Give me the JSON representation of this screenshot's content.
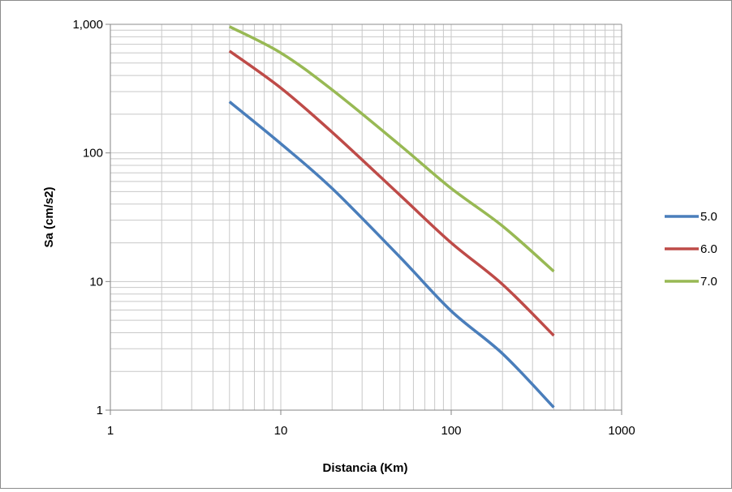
{
  "chart_data": {
    "type": "line",
    "title": "",
    "xlabel": "Distancia (Km)",
    "ylabel": "Sa (cm/s2)",
    "x_scale": "log",
    "y_scale": "log",
    "xlim": [
      1,
      1000
    ],
    "ylim": [
      1,
      1000
    ],
    "x_ticks": [
      1,
      10,
      100,
      1000
    ],
    "x_tick_labels": [
      "1",
      "10",
      "100",
      "1000"
    ],
    "y_ticks": [
      1,
      10,
      100,
      1000
    ],
    "y_tick_labels": [
      "1",
      "10",
      "100",
      "1,000"
    ],
    "grid": "major and minor, both axes",
    "legend_position": "right",
    "series": [
      {
        "name": "5.0",
        "color": "#4a7ebb",
        "points": [
          [
            5,
            250
          ],
          [
            10,
            118
          ],
          [
            20,
            53
          ],
          [
            50,
            15.5
          ],
          [
            100,
            5.9
          ],
          [
            200,
            2.75
          ],
          [
            400,
            1.05
          ]
        ]
      },
      {
        "name": "6.0",
        "color": "#be4b48",
        "points": [
          [
            5,
            620
          ],
          [
            10,
            320
          ],
          [
            20,
            145
          ],
          [
            50,
            47
          ],
          [
            100,
            20
          ],
          [
            200,
            9.5
          ],
          [
            400,
            3.8
          ]
        ]
      },
      {
        "name": "7.0",
        "color": "#98b954",
        "points": [
          [
            5,
            960
          ],
          [
            10,
            600
          ],
          [
            20,
            310
          ],
          [
            50,
            115
          ],
          [
            100,
            53
          ],
          [
            200,
            27
          ],
          [
            400,
            12
          ]
        ]
      }
    ]
  }
}
